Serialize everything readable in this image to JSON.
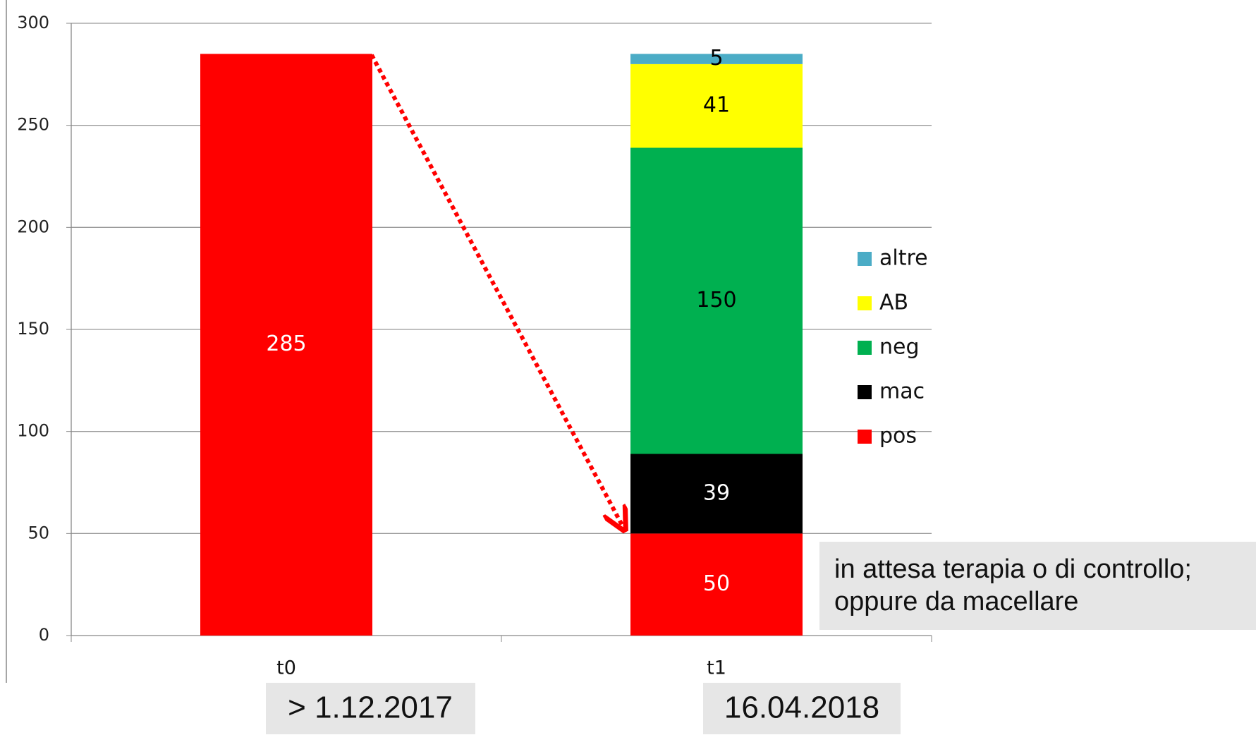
{
  "chart_data": {
    "type": "stacked_bar",
    "categories": [
      "t0",
      "t1"
    ],
    "series": [
      {
        "name": "pos",
        "color": "#ff0000",
        "label_color": "#ffffff",
        "values": [
          285,
          50
        ]
      },
      {
        "name": "mac",
        "color": "#000000",
        "label_color": "#ffffff",
        "values": [
          null,
          39
        ]
      },
      {
        "name": "neg",
        "color": "#00b050",
        "label_color": "#000000",
        "values": [
          null,
          150
        ]
      },
      {
        "name": "AB",
        "color": "#ffff00",
        "label_color": "#000000",
        "values": [
          null,
          41
        ]
      },
      {
        "name": "altre",
        "color": "#4bacc6",
        "label_color": "#000000",
        "values": [
          null,
          5
        ]
      }
    ],
    "ylim": [
      0,
      300
    ],
    "yticks": [
      0,
      50,
      100,
      150,
      200,
      250,
      300
    ],
    "grid": true,
    "legend": "right",
    "annotations": [
      "in attesa terapia o di controllo;",
      "oppure da macellare"
    ],
    "dates": [
      "> 1.12.2017",
      "16.04.2018"
    ]
  }
}
